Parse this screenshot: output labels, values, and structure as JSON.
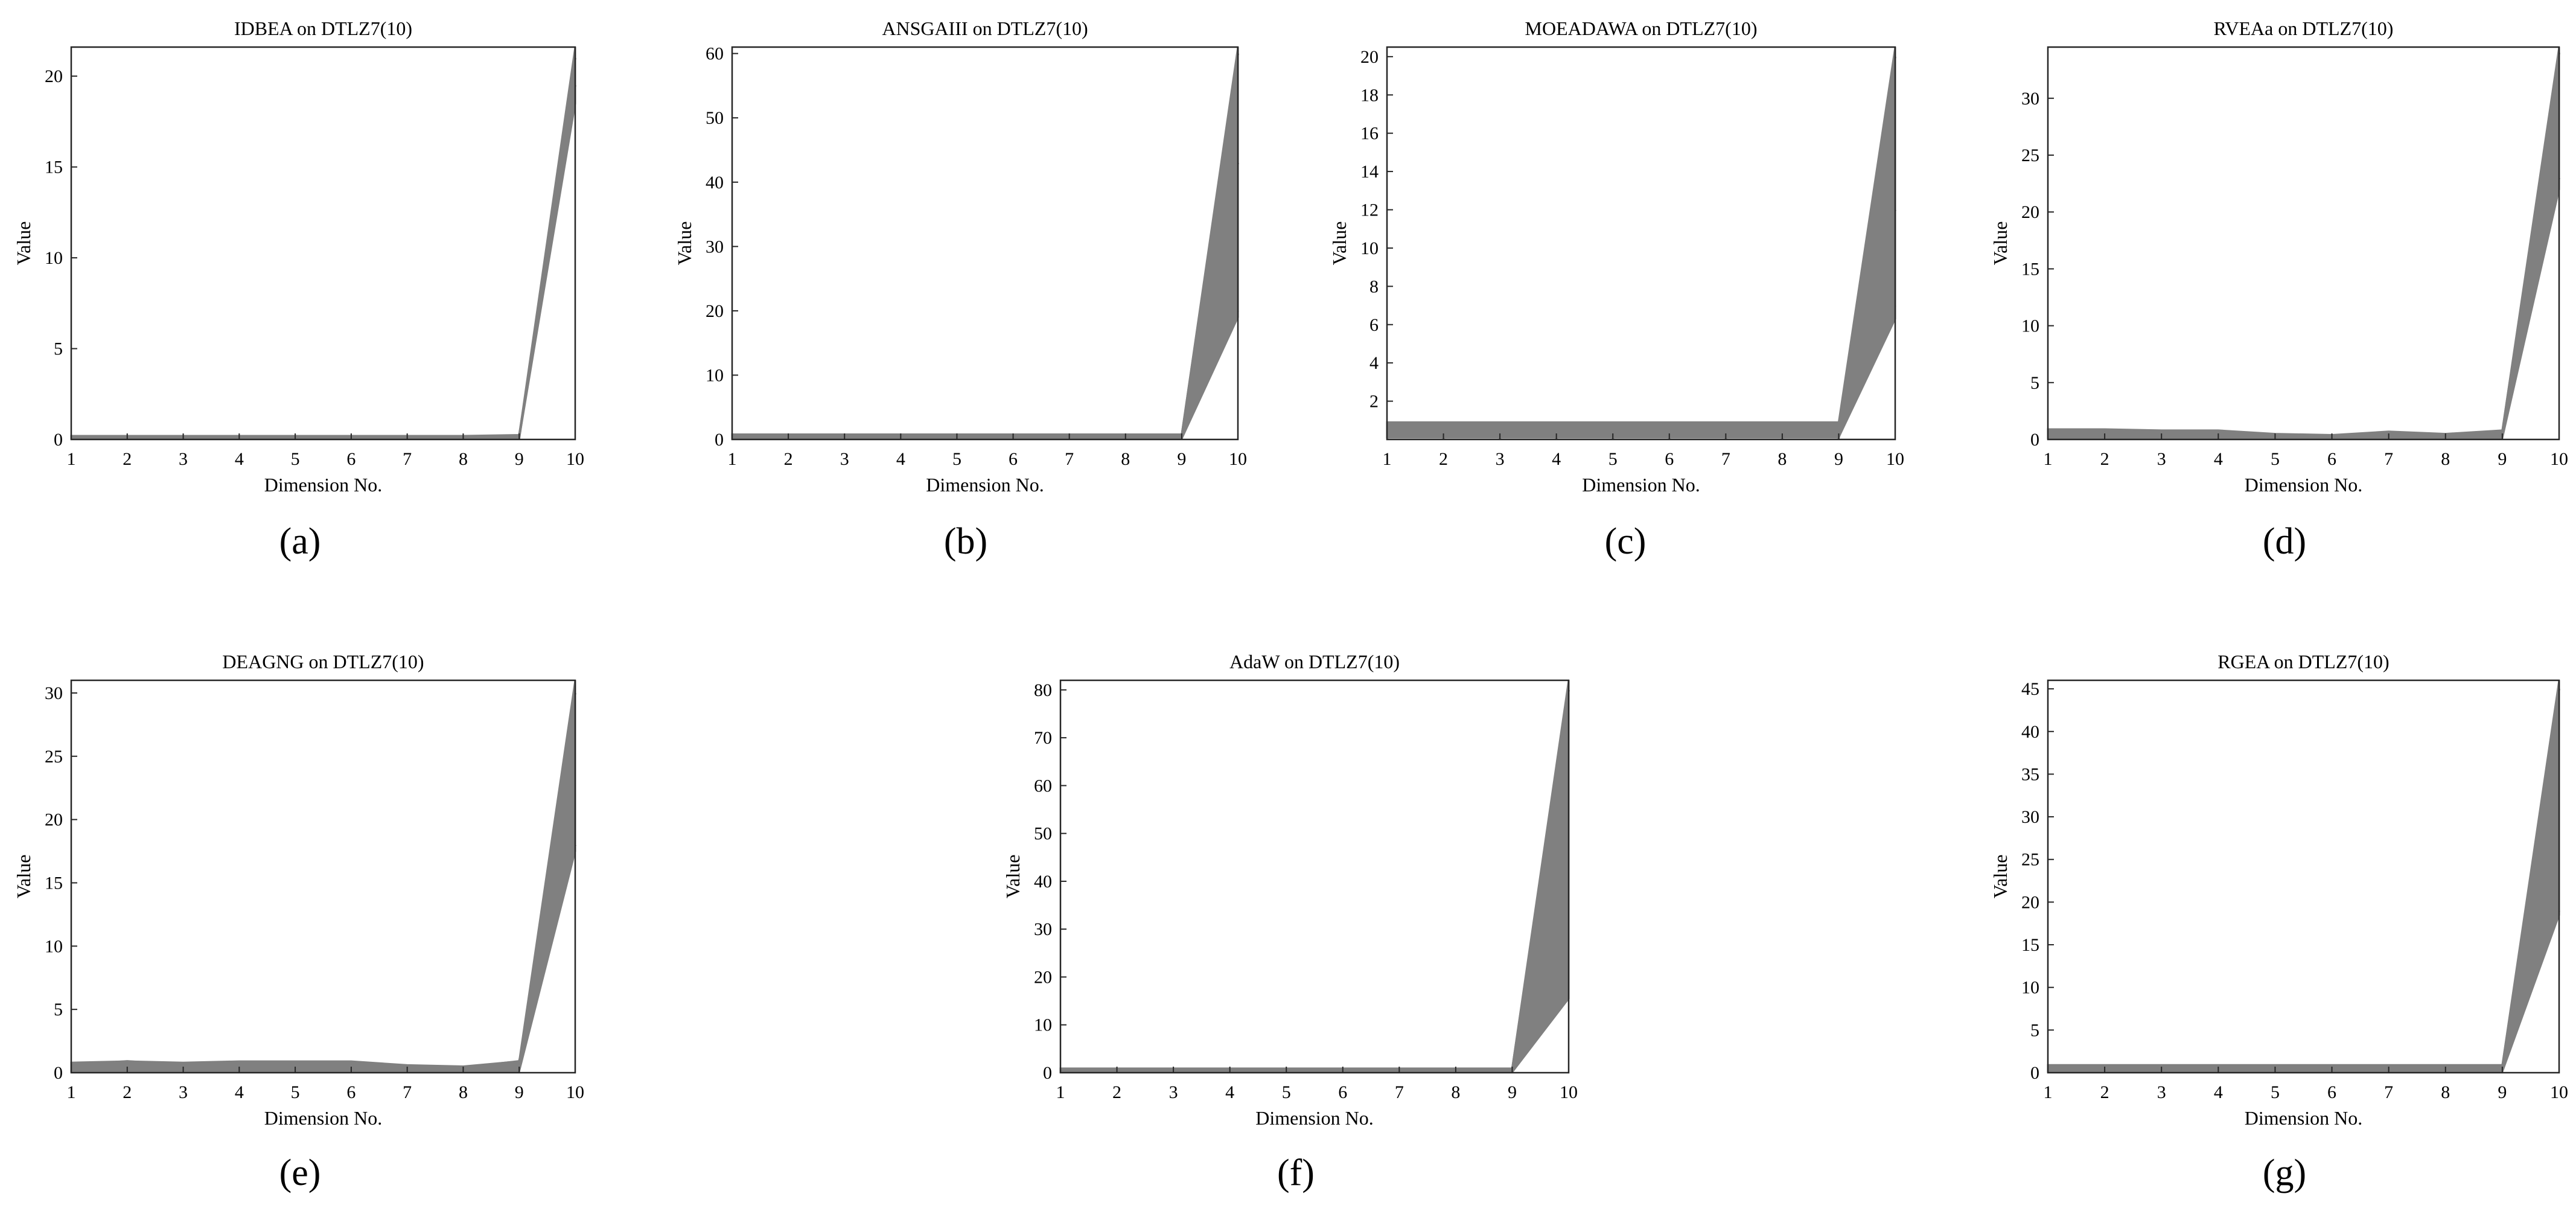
{
  "figure": {
    "charts": [
      {
        "title": "IDBEA on DTLZ7(10)",
        "caption": "(a)",
        "ymax": 21.6,
        "yticks": [
          0,
          5,
          10,
          15,
          20
        ],
        "band_low": [
          0.05,
          0.05,
          0.05,
          0.05,
          0.05,
          0.05,
          0.05,
          0.05,
          0.05,
          18.5
        ],
        "band_high": [
          0.2,
          0.2,
          0.2,
          0.2,
          0.2,
          0.2,
          0.2,
          0.2,
          0.25,
          21.6
        ]
      },
      {
        "title": "ANSGAIII on DTLZ7(10)",
        "caption": "(b)",
        "ymax": 61,
        "yticks": [
          0,
          10,
          20,
          30,
          40,
          50,
          60
        ],
        "band_low": [
          0.1,
          0.1,
          0.1,
          0.1,
          0.1,
          0.1,
          0.1,
          0.1,
          0.1,
          19
        ],
        "band_high": [
          0.8,
          0.8,
          0.8,
          0.8,
          0.8,
          0.8,
          0.8,
          0.8,
          0.8,
          61
        ]
      },
      {
        "title": "MOEADAWA on DTLZ7(10)",
        "caption": "(c)",
        "ymax": 20.5,
        "yticks": [
          2,
          4,
          6,
          8,
          10,
          12,
          14,
          16,
          18,
          20
        ],
        "band_low": [
          0.1,
          0.1,
          0.1,
          0.1,
          0.1,
          0.1,
          0.1,
          0.1,
          0.1,
          6.3
        ],
        "band_high": [
          0.9,
          0.9,
          0.9,
          0.9,
          0.9,
          0.9,
          0.9,
          0.9,
          0.9,
          20.5
        ]
      },
      {
        "title": "RVEAa on DTLZ7(10)",
        "caption": "(d)",
        "ymax": 34.5,
        "yticks": [
          0,
          5,
          10,
          15,
          20,
          25,
          30
        ],
        "band_low": [
          0.1,
          0.1,
          0.1,
          0.1,
          0.1,
          0.1,
          0.1,
          0.1,
          0.1,
          22
        ],
        "band_high": [
          0.9,
          0.9,
          0.8,
          0.8,
          0.5,
          0.4,
          0.7,
          0.5,
          0.8,
          34.5
        ]
      },
      {
        "title": "DEAGNG on DTLZ7(10)",
        "caption": "(e)",
        "ymax": 31,
        "yticks": [
          0,
          5,
          10,
          15,
          20,
          25,
          30
        ],
        "band_low": [
          0.1,
          0.1,
          0.1,
          0.1,
          0.1,
          0.1,
          0.1,
          0.1,
          0.1,
          17.5
        ],
        "band_high": [
          0.8,
          0.9,
          0.8,
          0.9,
          0.9,
          0.9,
          0.6,
          0.5,
          0.9,
          31
        ]
      },
      {
        "title": "AdaW on DTLZ7(10)",
        "caption": "(f)",
        "ymax": 82,
        "yticks": [
          0,
          10,
          20,
          30,
          40,
          50,
          60,
          70,
          80
        ],
        "band_low": [
          0.1,
          0.1,
          0.1,
          0.1,
          0.1,
          0.1,
          0.1,
          0.1,
          0.1,
          15.5
        ],
        "band_high": [
          0.9,
          0.9,
          0.9,
          0.9,
          0.9,
          0.9,
          0.9,
          0.9,
          0.9,
          82
        ]
      },
      {
        "title": "RGEA on DTLZ7(10)",
        "caption": "(g)",
        "ymax": 46,
        "yticks": [
          0,
          5,
          10,
          15,
          20,
          25,
          30,
          35,
          40,
          45
        ],
        "band_low": [
          0.1,
          0.1,
          0.1,
          0.1,
          0.1,
          0.1,
          0.1,
          0.1,
          0.1,
          18.5
        ],
        "band_high": [
          0.9,
          0.9,
          0.9,
          0.9,
          0.9,
          0.9,
          0.9,
          0.9,
          0.9,
          46
        ]
      }
    ]
  },
  "chart_data": [
    {
      "type": "line",
      "title": "IDBEA on DTLZ7(10)",
      "caption": "(a)",
      "xlabel": "Dimension No.",
      "ylabel": "Value",
      "x": [
        1,
        2,
        3,
        4,
        5,
        6,
        7,
        8,
        9,
        10
      ],
      "ylim": [
        0,
        21.6
      ],
      "xlim": [
        1,
        10
      ],
      "grid": false,
      "line_color": "#808080",
      "series": [
        {
          "values": [
            0.15,
            0.15,
            0.15,
            0.15,
            0.15,
            0.15,
            0.15,
            0.15,
            0.2,
            19.5
          ]
        },
        {
          "values": [
            0.1,
            0.12,
            0.1,
            0.12,
            0.1,
            0.12,
            0.1,
            0.12,
            0.1,
            21
          ]
        }
      ]
    },
    {
      "type": "line",
      "title": "ANSGAIII on DTLZ7(10)",
      "caption": "(b)",
      "xlabel": "Dimension No.",
      "ylabel": "Value",
      "x": [
        1,
        2,
        3,
        4,
        5,
        6,
        7,
        8,
        9,
        10
      ],
      "ylim": [
        0,
        61
      ],
      "xlim": [
        1,
        10
      ],
      "grid": false,
      "line_color": "#808080",
      "series": [
        {
          "values": [
            0.5,
            0.5,
            0.5,
            0.5,
            0.5,
            0.5,
            0.5,
            0.5,
            0.5,
            20
          ]
        },
        {
          "values": [
            0.5,
            0.5,
            0.5,
            0.5,
            0.5,
            0.5,
            0.5,
            0.5,
            0.5,
            43
          ]
        },
        {
          "values": [
            0.5,
            0.5,
            0.5,
            0.5,
            0.5,
            0.5,
            0.5,
            0.5,
            0.5,
            60
          ]
        }
      ]
    },
    {
      "type": "line",
      "title": "MOEADAWA on DTLZ7(10)",
      "caption": "(c)",
      "xlabel": "Dimension No.",
      "ylabel": "Value",
      "x": [
        1,
        2,
        3,
        4,
        5,
        6,
        7,
        8,
        9,
        10
      ],
      "ylim": [
        0,
        20.5
      ],
      "xlim": [
        1,
        10
      ],
      "grid": false,
      "line_color": "#808080",
      "series": [
        {
          "values": [
            0.8,
            0.1,
            0.8,
            0.1,
            0.8,
            0.1,
            0.8,
            0.1,
            0.8,
            7
          ]
        },
        {
          "values": [
            0.1,
            0.8,
            0.1,
            0.8,
            0.1,
            0.8,
            0.1,
            0.8,
            0.1,
            12
          ]
        },
        {
          "values": [
            0.5,
            0.5,
            0.5,
            0.5,
            0.5,
            0.5,
            0.5,
            0.5,
            0.5,
            20
          ]
        }
      ]
    },
    {
      "type": "line",
      "title": "RVEAa on DTLZ7(10)",
      "caption": "(d)",
      "xlabel": "Dimension No.",
      "ylabel": "Value",
      "x": [
        1,
        2,
        3,
        4,
        5,
        6,
        7,
        8,
        9,
        10
      ],
      "ylim": [
        0,
        34.5
      ],
      "xlim": [
        1,
        10
      ],
      "grid": false,
      "line_color": "#808080",
      "series": [
        {
          "values": [
            0.5,
            0.5,
            0.4,
            0.5,
            0.2,
            0.2,
            0.5,
            0.3,
            0.5,
            23
          ]
        },
        {
          "values": [
            0.8,
            0.6,
            0.6,
            0.6,
            0.3,
            0.3,
            0.6,
            0.4,
            0.6,
            34
          ]
        }
      ]
    },
    {
      "type": "line",
      "title": "DEAGNG on DTLZ7(10)",
      "caption": "(e)",
      "xlabel": "Dimension No.",
      "ylabel": "Value",
      "x": [
        1,
        2,
        3,
        4,
        5,
        6,
        7,
        8,
        9,
        10
      ],
      "ylim": [
        0,
        31
      ],
      "xlim": [
        1,
        10
      ],
      "grid": false,
      "line_color": "#808080",
      "series": [
        {
          "values": [
            0.6,
            0.9,
            0.6,
            0.8,
            0.8,
            0.8,
            0.4,
            0.4,
            0.9,
            18
          ]
        },
        {
          "values": [
            0.4,
            0.5,
            0.5,
            0.5,
            0.6,
            0.6,
            0.3,
            0.3,
            0.6,
            30
          ]
        }
      ]
    },
    {
      "type": "line",
      "title": "AdaW on DTLZ7(10)",
      "caption": "(f)",
      "xlabel": "Dimension No.",
      "ylabel": "Value",
      "x": [
        1,
        2,
        3,
        4,
        5,
        6,
        7,
        8,
        9,
        10
      ],
      "ylim": [
        0,
        82
      ],
      "xlim": [
        1,
        10
      ],
      "grid": false,
      "line_color": "#808080",
      "series": [
        {
          "values": [
            0.5,
            0.5,
            0.5,
            0.5,
            0.5,
            0.5,
            0.5,
            0.5,
            0.5,
            16
          ]
        },
        {
          "values": [
            0.5,
            0.5,
            0.5,
            0.5,
            0.5,
            0.5,
            0.5,
            0.5,
            0.5,
            19
          ]
        },
        {
          "values": [
            0.5,
            0.5,
            0.5,
            0.5,
            0.5,
            0.5,
            0.5,
            0.5,
            0.5,
            80
          ]
        }
      ]
    },
    {
      "type": "line",
      "title": "RGEA on DTLZ7(10)",
      "caption": "(g)",
      "xlabel": "Dimension No.",
      "ylabel": "Value",
      "x": [
        1,
        2,
        3,
        4,
        5,
        6,
        7,
        8,
        9,
        10
      ],
      "ylim": [
        0,
        46
      ],
      "xlim": [
        1,
        10
      ],
      "grid": false,
      "line_color": "#808080",
      "series": [
        {
          "values": [
            0.5,
            0.5,
            0.5,
            0.5,
            0.5,
            0.5,
            0.5,
            0.5,
            0.5,
            19
          ]
        },
        {
          "values": [
            0.6,
            0.5,
            0.6,
            0.5,
            0.6,
            0.5,
            0.6,
            0.5,
            0.6,
            45
          ]
        }
      ]
    }
  ]
}
